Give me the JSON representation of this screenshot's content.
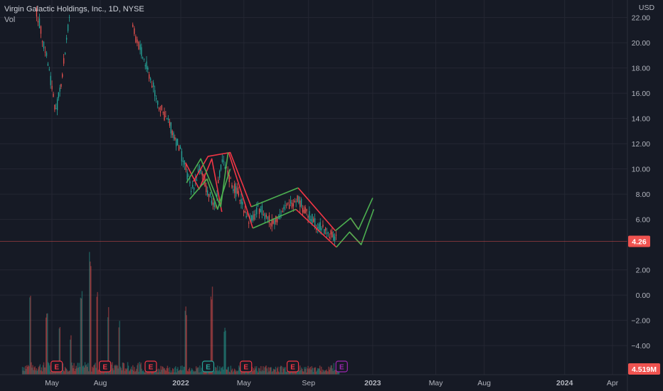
{
  "legend": {
    "symbol": "Virgin Galactic Holdings, Inc., 1D, NYSE",
    "volume": "Vol"
  },
  "colors": {
    "background": "#161a25",
    "grid": "#242733",
    "up": "#26a69a",
    "down": "#ef5350",
    "channel_up": "#4caf50",
    "channel_down": "#f23645",
    "earnings_red": "#f23645",
    "earnings_purple": "#9c27b0",
    "earnings_teal": "#26a69a"
  },
  "chart_data": {
    "type": "candlestick",
    "y_unit": "USD",
    "y_ticks": [
      "22.00",
      "20.00",
      "18.00",
      "16.00",
      "14.00",
      "12.00",
      "10.00",
      "8.00",
      "6.00",
      "2.00",
      "0.00",
      "−2.00",
      "−4.00"
    ],
    "y_tick_values": [
      22,
      20,
      18,
      16,
      14,
      12,
      10,
      8,
      6,
      2,
      0,
      -2,
      -4
    ],
    "x_ticks": [
      "May",
      "Aug",
      "2022",
      "May",
      "Sep",
      "2023",
      "May",
      "Aug",
      "2024",
      "Apr"
    ],
    "x_tick_dates": [
      "2021-05-01",
      "2021-08-01",
      "2022-01-01",
      "2022-05-01",
      "2022-09-01",
      "2023-01-01",
      "2023-05-01",
      "2023-08-01",
      "2024-01-01",
      "2024-04-01"
    ],
    "last_price": {
      "label": "4.26",
      "value": 4.26
    },
    "last_volume": {
      "label": "4.519M"
    },
    "price_path": [
      [
        "2021-04-01",
        22.5
      ],
      [
        "2021-04-20",
        19.0
      ],
      [
        "2021-05-08",
        14.5
      ],
      [
        "2021-05-20",
        17.5
      ],
      [
        "2021-06-05",
        23.0
      ],
      [
        "2021-10-01",
        21.0
      ],
      [
        "2021-10-15",
        19.5
      ],
      [
        "2021-11-01",
        17.5
      ],
      [
        "2021-11-20",
        15.0
      ],
      [
        "2021-12-10",
        13.5
      ],
      [
        "2021-12-25",
        12.0
      ],
      [
        "2022-01-10",
        10.0
      ],
      [
        "2022-01-20",
        8.2
      ],
      [
        "2022-02-05",
        10.0
      ],
      [
        "2022-02-20",
        8.3
      ],
      [
        "2022-03-05",
        7.0
      ],
      [
        "2022-03-20",
        10.6
      ],
      [
        "2022-04-05",
        9.0
      ],
      [
        "2022-04-25",
        7.5
      ],
      [
        "2022-05-12",
        5.8
      ],
      [
        "2022-06-01",
        7.0
      ],
      [
        "2022-06-20",
        5.7
      ],
      [
        "2022-07-10",
        6.5
      ],
      [
        "2022-08-10",
        7.8
      ],
      [
        "2022-08-25",
        6.6
      ],
      [
        "2022-09-20",
        5.4
      ],
      [
        "2022-10-10",
        4.9
      ],
      [
        "2022-10-25",
        4.26
      ]
    ],
    "channel_green": [
      [
        [
          "2022-01-12",
          8.9
        ],
        [
          "2022-02-08",
          10.8
        ],
        [
          "2022-03-18",
          7.0
        ],
        [
          "2022-04-01",
          11.3
        ]
      ],
      [
        [
          "2022-01-18",
          7.6
        ],
        [
          "2022-02-20",
          9.2
        ],
        [
          "2022-03-12",
          6.8
        ],
        [
          "2022-04-05",
          10.0
        ]
      ],
      [
        [
          "2022-05-15",
          7.0
        ],
        [
          "2022-08-12",
          8.5
        ]
      ],
      [
        [
          "2022-05-18",
          5.3
        ],
        [
          "2022-08-08",
          6.8
        ]
      ],
      [
        [
          "2022-10-22",
          5.1
        ],
        [
          "2022-11-20",
          6.1
        ],
        [
          "2022-12-05",
          5.2
        ],
        [
          "2023-01-01",
          7.7
        ]
      ],
      [
        [
          "2022-10-24",
          3.8
        ],
        [
          "2022-11-18",
          5.0
        ],
        [
          "2022-12-10",
          4.0
        ],
        [
          "2023-01-03",
          6.8
        ]
      ]
    ],
    "channel_red": [
      [
        [
          "2022-01-10",
          10.5
        ],
        [
          "2022-02-05",
          8.4
        ],
        [
          "2022-03-01",
          10.8
        ],
        [
          "2022-03-20",
          6.6
        ]
      ],
      [
        [
          "2022-01-25",
          9.0
        ],
        [
          "2022-02-22",
          11.0
        ],
        [
          "2022-04-05",
          11.3
        ],
        [
          "2022-05-15",
          7.0
        ]
      ],
      [
        [
          "2022-04-02",
          11.3
        ],
        [
          "2022-05-18",
          5.3
        ]
      ],
      [
        [
          "2022-08-12",
          8.5
        ],
        [
          "2022-10-22",
          5.1
        ]
      ],
      [
        [
          "2022-08-08",
          6.8
        ],
        [
          "2022-10-24",
          3.8
        ]
      ],
      [
        [
          "2022-11-20",
          6.1
        ],
        [
          "2022-12-05",
          5.2
        ]
      ],
      [
        [
          "2022-11-18",
          5.0
        ],
        [
          "2022-12-10",
          4.0
        ]
      ]
    ],
    "earnings": [
      {
        "date": "2021-05-10",
        "label": "E",
        "kind": "red"
      },
      {
        "date": "2021-08-10",
        "label": "E",
        "kind": "red"
      },
      {
        "date": "2021-11-05",
        "label": "E",
        "kind": "red"
      },
      {
        "date": "2022-02-22",
        "label": "E",
        "kind": "teal"
      },
      {
        "date": "2022-05-05",
        "label": "E",
        "kind": "red"
      },
      {
        "date": "2022-08-02",
        "label": "E",
        "kind": "red"
      },
      {
        "date": "2022-11-03",
        "label": "E",
        "kind": "purple"
      }
    ],
    "volume_spikes": [
      [
        "2021-03-20",
        1.0
      ],
      [
        "2021-04-20",
        0.55
      ],
      [
        "2021-05-15",
        0.35
      ],
      [
        "2021-06-05",
        0.25
      ],
      [
        "2021-06-25",
        0.85
      ],
      [
        "2021-07-12",
        1.3
      ],
      [
        "2021-07-25",
        0.9
      ],
      [
        "2021-08-15",
        0.6
      ],
      [
        "2021-09-05",
        0.45
      ],
      [
        "2022-01-10",
        0.6
      ],
      [
        "2022-02-28",
        0.9
      ],
      [
        "2022-03-25",
        0.35
      ]
    ]
  }
}
